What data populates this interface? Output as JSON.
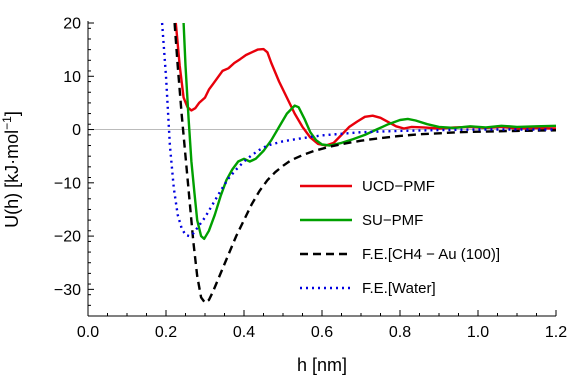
{
  "chart_data": {
    "type": "line",
    "xlabel": "h [nm]",
    "ylabel_main": "U(h) [kJ·mol",
    "ylabel_sup": "−1",
    "ylabel_close": "]",
    "xlim": [
      0.0,
      1.2
    ],
    "ylim": [
      -35,
      20
    ],
    "xticks": [
      0.0,
      0.2,
      0.4,
      0.6,
      0.8,
      1.0,
      1.2
    ],
    "xtick_labels": [
      "0.0",
      "0.2",
      "0.4",
      "0.6",
      "0.8",
      "1.0",
      "1.2"
    ],
    "yticks": [
      20,
      10,
      0,
      -10,
      -20,
      -30
    ],
    "ytick_labels": [
      "20",
      "10",
      "0",
      "−10",
      "−20",
      "−30"
    ],
    "zero_line": true,
    "legend_position": "right",
    "series": [
      {
        "name": "UCD−PMF",
        "color": "#e8000b",
        "dash": "solid",
        "points": [
          [
            0.225,
            20
          ],
          [
            0.235,
            12
          ],
          [
            0.245,
            6
          ],
          [
            0.255,
            4.2
          ],
          [
            0.265,
            3.6
          ],
          [
            0.275,
            4
          ],
          [
            0.285,
            5
          ],
          [
            0.3,
            6
          ],
          [
            0.31,
            7.5
          ],
          [
            0.32,
            8.5
          ],
          [
            0.33,
            9.5
          ],
          [
            0.345,
            11
          ],
          [
            0.36,
            11.5
          ],
          [
            0.375,
            12.5
          ],
          [
            0.39,
            13.2
          ],
          [
            0.405,
            14
          ],
          [
            0.42,
            14.5
          ],
          [
            0.435,
            15
          ],
          [
            0.45,
            15.1
          ],
          [
            0.46,
            14.5
          ],
          [
            0.47,
            12.5
          ],
          [
            0.49,
            9
          ],
          [
            0.51,
            6
          ],
          [
            0.53,
            3
          ],
          [
            0.55,
            0.5
          ],
          [
            0.57,
            -1.5
          ],
          [
            0.59,
            -2.7
          ],
          [
            0.61,
            -3
          ],
          [
            0.63,
            -2.5
          ],
          [
            0.65,
            -1
          ],
          [
            0.67,
            0.5
          ],
          [
            0.69,
            1.5
          ],
          [
            0.71,
            2.4
          ],
          [
            0.73,
            2.6
          ],
          [
            0.75,
            2.2
          ],
          [
            0.77,
            1.4
          ],
          [
            0.79,
            0.6
          ],
          [
            0.81,
            0.2
          ],
          [
            0.83,
            0.5
          ],
          [
            0.86,
            0.4
          ],
          [
            0.9,
            0.2
          ],
          [
            0.94,
            0.4
          ],
          [
            0.98,
            0.5
          ],
          [
            1.02,
            0.3
          ],
          [
            1.06,
            0.5
          ],
          [
            1.1,
            0.2
          ],
          [
            1.14,
            0.3
          ],
          [
            1.2,
            0.2
          ]
        ]
      },
      {
        "name": "SU−PMF",
        "color": "#00a000",
        "dash": "solid",
        "points": [
          [
            0.245,
            20
          ],
          [
            0.25,
            12
          ],
          [
            0.258,
            2
          ],
          [
            0.265,
            -6
          ],
          [
            0.273,
            -12
          ],
          [
            0.28,
            -17
          ],
          [
            0.29,
            -20
          ],
          [
            0.298,
            -20.5
          ],
          [
            0.31,
            -19
          ],
          [
            0.325,
            -16
          ],
          [
            0.34,
            -12.5
          ],
          [
            0.355,
            -9.5
          ],
          [
            0.37,
            -7.5
          ],
          [
            0.385,
            -6
          ],
          [
            0.4,
            -5.5
          ],
          [
            0.415,
            -6
          ],
          [
            0.43,
            -5.5
          ],
          [
            0.45,
            -4
          ],
          [
            0.47,
            -2
          ],
          [
            0.49,
            0.5
          ],
          [
            0.51,
            3
          ],
          [
            0.53,
            4.5
          ],
          [
            0.54,
            4.2
          ],
          [
            0.555,
            2
          ],
          [
            0.57,
            -0.5
          ],
          [
            0.585,
            -2
          ],
          [
            0.6,
            -2.8
          ],
          [
            0.62,
            -3
          ],
          [
            0.65,
            -2.5
          ],
          [
            0.68,
            -1.8
          ],
          [
            0.71,
            -1
          ],
          [
            0.74,
            0
          ],
          [
            0.77,
            1
          ],
          [
            0.8,
            1.8
          ],
          [
            0.82,
            2
          ],
          [
            0.84,
            1.7
          ],
          [
            0.87,
            1
          ],
          [
            0.9,
            0.5
          ],
          [
            0.94,
            0.3
          ],
          [
            0.98,
            0.6
          ],
          [
            1.02,
            0.4
          ],
          [
            1.06,
            0.7
          ],
          [
            1.1,
            0.5
          ],
          [
            1.15,
            0.6
          ],
          [
            1.2,
            0.7
          ]
        ]
      },
      {
        "name": "F.E.[CH4 − Au (100)]",
        "color": "#000000",
        "dash": "8,5",
        "points": [
          [
            0.222,
            20
          ],
          [
            0.23,
            12
          ],
          [
            0.24,
            3
          ],
          [
            0.25,
            -5
          ],
          [
            0.26,
            -13
          ],
          [
            0.27,
            -21
          ],
          [
            0.28,
            -27.5
          ],
          [
            0.29,
            -31.5
          ],
          [
            0.3,
            -32.5
          ],
          [
            0.31,
            -32
          ],
          [
            0.32,
            -30.5
          ],
          [
            0.34,
            -27
          ],
          [
            0.36,
            -23.5
          ],
          [
            0.38,
            -20
          ],
          [
            0.4,
            -17
          ],
          [
            0.42,
            -14
          ],
          [
            0.44,
            -11.5
          ],
          [
            0.46,
            -9.5
          ],
          [
            0.48,
            -8
          ],
          [
            0.5,
            -6.8
          ],
          [
            0.52,
            -5.8
          ],
          [
            0.55,
            -4.8
          ],
          [
            0.58,
            -4
          ],
          [
            0.62,
            -3.2
          ],
          [
            0.66,
            -2.6
          ],
          [
            0.7,
            -2.1
          ],
          [
            0.75,
            -1.6
          ],
          [
            0.8,
            -1.2
          ],
          [
            0.85,
            -0.9
          ],
          [
            0.9,
            -0.7
          ],
          [
            0.95,
            -0.5
          ],
          [
            1.0,
            -0.4
          ],
          [
            1.1,
            -0.25
          ],
          [
            1.2,
            -0.15
          ]
        ]
      },
      {
        "name": "F.E.[Water]",
        "color": "#0000e0",
        "dash": "2,4",
        "points": [
          [
            0.19,
            20
          ],
          [
            0.2,
            10
          ],
          [
            0.21,
            -3
          ],
          [
            0.22,
            -11
          ],
          [
            0.23,
            -16
          ],
          [
            0.24,
            -18.5
          ],
          [
            0.25,
            -19.8
          ],
          [
            0.26,
            -20
          ],
          [
            0.27,
            -19.5
          ],
          [
            0.28,
            -18.5
          ],
          [
            0.3,
            -16.5
          ],
          [
            0.32,
            -14
          ],
          [
            0.34,
            -11.5
          ],
          [
            0.36,
            -9.2
          ],
          [
            0.38,
            -7.5
          ],
          [
            0.4,
            -6
          ],
          [
            0.42,
            -4.8
          ],
          [
            0.44,
            -3.8
          ],
          [
            0.46,
            -3
          ],
          [
            0.5,
            -2.2
          ],
          [
            0.55,
            -1.6
          ],
          [
            0.6,
            -1.1
          ],
          [
            0.65,
            -0.8
          ],
          [
            0.7,
            -0.5
          ],
          [
            0.8,
            -0.25
          ],
          [
            0.9,
            -0.1
          ],
          [
            1.0,
            0
          ],
          [
            1.2,
            0
          ]
        ]
      }
    ]
  }
}
